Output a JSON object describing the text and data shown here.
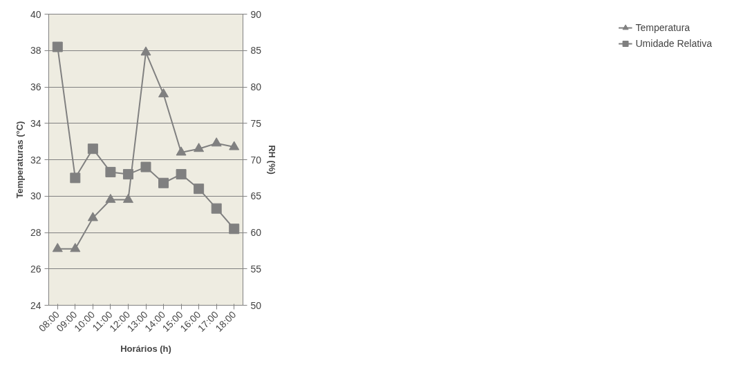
{
  "chart_data": {
    "type": "line",
    "xlabel": "Horários (h)",
    "ylabel": "Temperaturas (°C)",
    "y2label": "RH (%)",
    "categories": [
      "08:00",
      "09:00",
      "10:00",
      "11:00",
      "12:00",
      "13:00",
      "14:00",
      "15:00",
      "16:00",
      "17:00",
      "18:00"
    ],
    "series": [
      {
        "name": "Temperatura",
        "color": "#808080",
        "marker": "triangle",
        "values": [
          27.1,
          27.1,
          28.8,
          29.8,
          29.8,
          37.9,
          35.6,
          32.4,
          32.6,
          32.9,
          32.7
        ]
      },
      {
        "name": "Umidade Relativa",
        "color": "#808080",
        "marker": "square",
        "axis": "y2",
        "values": [
          85.5,
          67.5,
          71.5,
          68.3,
          68.0,
          69.0,
          66.8,
          68.0,
          66.0,
          63.3,
          60.5
        ]
      }
    ],
    "ylim": [
      24,
      40
    ],
    "yticks": [
      24,
      26,
      28,
      30,
      32,
      34,
      36,
      38,
      40
    ],
    "y2lim": [
      50,
      90
    ],
    "y2ticks": [
      50,
      55,
      60,
      65,
      70,
      75,
      80,
      85,
      90
    ],
    "grid": "y",
    "legend": "right",
    "line_style": "solid"
  }
}
